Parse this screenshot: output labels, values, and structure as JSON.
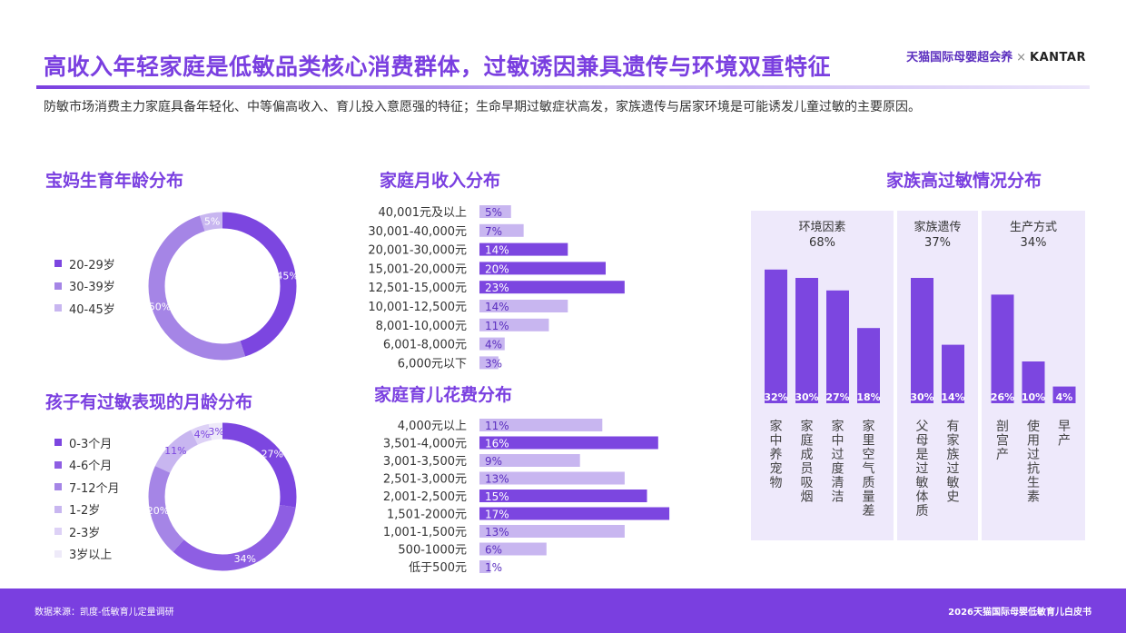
{
  "header": {
    "title": "高收入年轻家庭是低敏品类核心消费群体，过敏诱因兼具遗传与环境双重特征",
    "logo_tmall": "天猫国际母婴超会养",
    "logo_sep": "×",
    "logo_kantar": "KANTAR",
    "subtitle": "防敏市场消费主力家庭具备年轻化、中等偏高收入、育儿投入意愿强的特征；生命早期过敏症状高发，家族遗传与居家环境是可能诱发儿童过敏的主要原因。"
  },
  "footer": {
    "source": "数据来源：凯度-低敏育儿定量调研",
    "report": "2026天猫国际母婴低敏育儿白皮书"
  },
  "colors": {
    "dark": "#7c46e0",
    "mid": "#a585e6",
    "light": "#c8b6f0",
    "lighter": "#ddd1f6",
    "lightest": "#eeeaf9",
    "panel": "#eee9fb"
  },
  "chart_data": [
    {
      "id": "mom_age",
      "type": "pie",
      "title": "宝妈生育年龄分布",
      "categories": [
        "20-29岁",
        "30-39岁",
        "40-45岁"
      ],
      "values": [
        45,
        50,
        5
      ],
      "labels": [
        "45%",
        "50%",
        "5%"
      ],
      "colors": [
        "#7c46e0",
        "#a585e6",
        "#c8b6f0"
      ],
      "legend": "left"
    },
    {
      "id": "child_age",
      "type": "pie",
      "title": "孩子有过敏表现的月龄分布",
      "categories": [
        "0-3个月",
        "4-6个月",
        "7-12个月",
        "1-2岁",
        "2-3岁",
        "3岁以上"
      ],
      "values": [
        27,
        34,
        20,
        11,
        4,
        3
      ],
      "labels": [
        "27%",
        "34%",
        "20%",
        "11%",
        "4%",
        "3%"
      ],
      "colors": [
        "#7c46e0",
        "#8e5ee3",
        "#a585e6",
        "#c8b6f0",
        "#ddd1f6",
        "#eeeaf9"
      ],
      "legend": "left"
    },
    {
      "id": "income",
      "type": "bar",
      "orientation": "horizontal",
      "title": "家庭月收入分布",
      "categories": [
        "40,001元及以上",
        "30,001-40,000元",
        "20,001-30,000元",
        "15,001-20,000元",
        "12,501-15,000元",
        "10,001-12,500元",
        "8,001-10,000元",
        "6,001-8,000元",
        "6,000元以下"
      ],
      "values": [
        5,
        7,
        14,
        20,
        23,
        14,
        11,
        4,
        3
      ],
      "labels": [
        "5%",
        "7%",
        "14%",
        "20%",
        "23%",
        "14%",
        "11%",
        "4%",
        "3%"
      ],
      "highlight": [
        false,
        false,
        true,
        true,
        true,
        false,
        false,
        false,
        false
      ]
    },
    {
      "id": "spending",
      "type": "bar",
      "orientation": "horizontal",
      "title": "家庭育儿花费分布",
      "categories": [
        "4,000元以上",
        "3,501-4,000元",
        "3,001-3,500元",
        "2,501-3,000元",
        "2,001-2,500元",
        "1,501-2000元",
        "1,001-1,500元",
        "500-1000元",
        "低于500元"
      ],
      "values": [
        11,
        16,
        9,
        13,
        15,
        17,
        13,
        6,
        1
      ],
      "labels": [
        "11%",
        "16%",
        "9%",
        "13%",
        "15%",
        "17%",
        "13%",
        "6%",
        "1%"
      ],
      "highlight": [
        false,
        true,
        false,
        false,
        true,
        true,
        false,
        false,
        false
      ]
    },
    {
      "id": "family_allergy",
      "type": "bar",
      "orientation": "vertical",
      "title": "家族高过敏情况分布",
      "groups": [
        {
          "name": "环境因素",
          "total": "68%",
          "categories": [
            "家中养宠物",
            "家庭成员吸烟",
            "家中过度清洁",
            "家里空气质量差"
          ],
          "values": [
            32,
            30,
            27,
            18
          ],
          "labels": [
            "32%",
            "30%",
            "27%",
            "18%"
          ]
        },
        {
          "name": "家族遗传",
          "total": "37%",
          "categories": [
            "父母是过敏体质",
            "有家族过敏史"
          ],
          "values": [
            30,
            14
          ],
          "labels": [
            "30%",
            "14%"
          ]
        },
        {
          "name": "生产方式",
          "total": "34%",
          "categories": [
            "剖宫产",
            "使用过抗生素",
            "早产"
          ],
          "values": [
            26,
            10,
            4
          ],
          "labels": [
            "26%",
            "10%",
            "4%"
          ]
        }
      ]
    }
  ]
}
